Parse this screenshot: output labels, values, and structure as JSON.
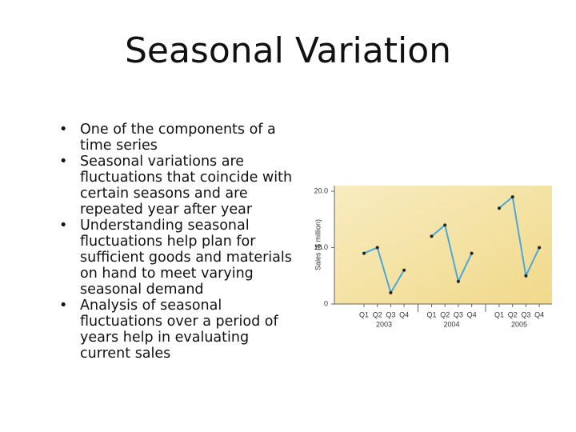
{
  "title": "Seasonal Variation",
  "bullets": [
    "One of the components of a time series",
    "Seasonal variations are fluctuations that coincide with certain seasons and are repeated year after year",
    "Understanding seasonal fluctuations help plan for sufficient goods and materials on hand to meet varying seasonal demand",
    "Analysis of seasonal fluctuations over a period of years help in evaluating current sales"
  ],
  "chart_data": {
    "type": "line",
    "ylabel": "Sales ($ million)",
    "groups": [
      {
        "name": "2003",
        "categories": [
          "Q1",
          "Q2",
          "Q3",
          "Q4"
        ],
        "values": [
          9,
          10,
          2,
          6
        ]
      },
      {
        "name": "2004",
        "categories": [
          "Q1",
          "Q2",
          "Q3",
          "Q4"
        ],
        "values": [
          12,
          14,
          4,
          9
        ]
      },
      {
        "name": "2005",
        "categories": [
          "Q1",
          "Q2",
          "Q3",
          "Q4"
        ],
        "values": [
          17,
          19,
          5,
          10
        ]
      }
    ],
    "color": "#4aa8d8",
    "ylim": [
      0,
      21
    ],
    "yticks": [
      0,
      {
        "value": 10,
        "label": "10.0"
      },
      {
        "value": 20,
        "label": "20.0"
      }
    ]
  }
}
